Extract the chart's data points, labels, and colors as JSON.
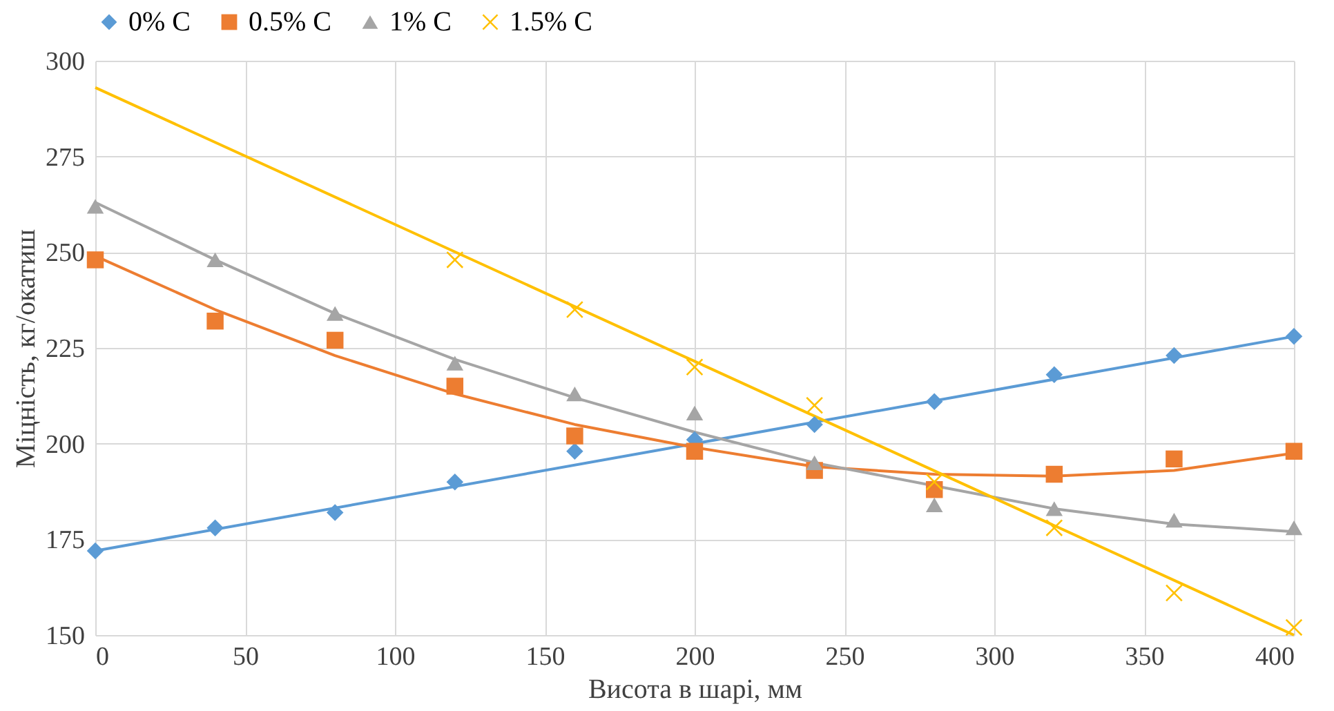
{
  "chart_data": {
    "type": "scatter",
    "xlabel": "Висота в шарі, мм",
    "ylabel": "Міцність, кг/окатиш",
    "x": [
      0,
      40,
      80,
      120,
      160,
      200,
      240,
      280,
      320,
      360,
      400
    ],
    "series": [
      {
        "name": "0% C",
        "color": "#5b9bd5",
        "marker": "diamond",
        "values": [
          172,
          178,
          182,
          190,
          198,
          201,
          205,
          211,
          218,
          223,
          228
        ]
      },
      {
        "name": "0.5% C",
        "color": "#ed7d31",
        "marker": "square",
        "values": [
          248,
          232,
          227,
          215,
          202,
          198,
          193,
          188,
          192,
          196,
          198
        ]
      },
      {
        "name": "1% C",
        "color": "#a5a5a5",
        "marker": "triangle",
        "values": [
          262,
          248,
          234,
          221,
          213,
          208,
          195,
          184,
          183,
          180,
          178
        ]
      },
      {
        "name": "1.5% C",
        "color": "#ffc000",
        "marker": "cross",
        "x": [
          120,
          160,
          200,
          240,
          280,
          320,
          360,
          400
        ],
        "values": [
          248,
          235,
          220,
          210,
          190,
          178,
          161,
          152
        ]
      },
      {
        "type": "line",
        "color": "#5b9bd5",
        "x": [
          0,
          200,
          400
        ],
        "values": [
          172,
          200,
          228
        ]
      },
      {
        "type": "line",
        "color": "#ed7d31",
        "x": [
          0,
          40,
          80,
          120,
          160,
          200,
          240,
          280,
          320,
          360,
          400
        ],
        "values": [
          249,
          235,
          223,
          213,
          205,
          199,
          194,
          192,
          191.5,
          193,
          197.5
        ]
      },
      {
        "type": "line",
        "color": "#a5a5a5",
        "x": [
          0,
          40,
          80,
          120,
          160,
          200,
          240,
          280,
          320,
          360,
          400
        ],
        "values": [
          263,
          248,
          234,
          222,
          212,
          203,
          195,
          189,
          183,
          179,
          177
        ]
      },
      {
        "type": "line",
        "color": "#ffc000",
        "x": [
          0,
          200,
          400
        ],
        "values": [
          293,
          221.5,
          150
        ]
      }
    ],
    "xlim": [
      0,
      400
    ],
    "xticks": [
      0,
      50,
      100,
      150,
      200,
      250,
      300,
      350,
      400
    ],
    "ylim": [
      150,
      300
    ],
    "yticks": [
      150,
      175,
      200,
      225,
      250,
      275,
      300
    ],
    "grid": true,
    "legend": "top"
  }
}
